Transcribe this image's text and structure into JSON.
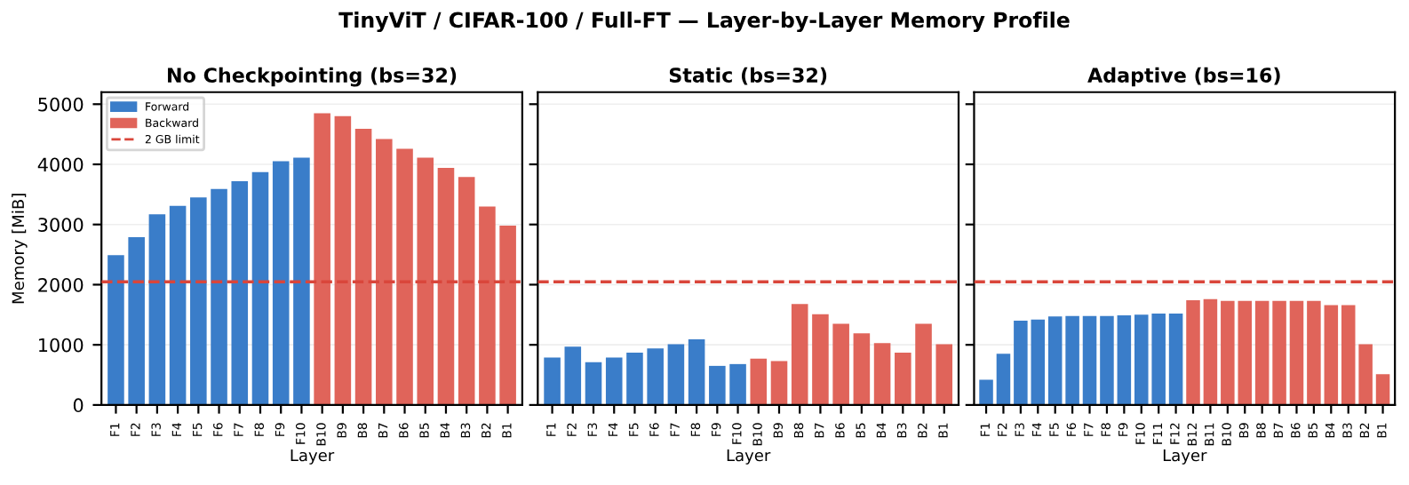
{
  "chart_data": [
    {
      "type": "bar",
      "title": "No Checkpointing (bs=32)",
      "xlabel": "Layer",
      "ylabel": "Memory [MiB]",
      "annotations": [
        "TinyViT / CIFAR-100 / Full-FT — Layer-by-Layer Memory Profile"
      ],
      "categories": [
        "F1",
        "F2",
        "F3",
        "F4",
        "F5",
        "F6",
        "F7",
        "F8",
        "F9",
        "F10",
        "B10",
        "B9",
        "B8",
        "B7",
        "B6",
        "B5",
        "B4",
        "B3",
        "B2",
        "B1"
      ],
      "series": [
        {
          "name": "Forward",
          "color": "#3a7dc9",
          "values": [
            2490,
            2790,
            3170,
            3310,
            3450,
            3590,
            3720,
            3870,
            4050,
            4110,
            null,
            null,
            null,
            null,
            null,
            null,
            null,
            null,
            null,
            null
          ]
        },
        {
          "name": "Backward",
          "color": "#e0645a",
          "values": [
            null,
            null,
            null,
            null,
            null,
            null,
            null,
            null,
            null,
            null,
            4850,
            4800,
            4590,
            4420,
            4260,
            4110,
            3940,
            3790,
            3300,
            2980
          ]
        }
      ],
      "ref_lines": [
        {
          "axis": "y",
          "value": 2048,
          "label": "2 GB limit",
          "color": "#d9463b",
          "line_style": "dashed"
        }
      ],
      "ylim": [
        0,
        5200
      ],
      "yticks": [
        0,
        1000,
        2000,
        3000,
        4000,
        5000
      ],
      "grid": "y",
      "legend": "top left"
    },
    {
      "type": "bar",
      "title": "Static (bs=32)",
      "xlabel": "Layer",
      "tick_labels": "x",
      "categories": [
        "F1",
        "F2",
        "F3",
        "F4",
        "F5",
        "F6",
        "F7",
        "F8",
        "F9",
        "F10",
        "B10",
        "B9",
        "B8",
        "B7",
        "B6",
        "B5",
        "B4",
        "B3",
        "B2",
        "B1"
      ],
      "series": [
        {
          "color": "#3a7dc9",
          "values": [
            790,
            970,
            710,
            790,
            870,
            940,
            1010,
            1090,
            650,
            680,
            null,
            null,
            null,
            null,
            null,
            null,
            null,
            null,
            null,
            null
          ]
        },
        {
          "color": "#e0645a",
          "values": [
            null,
            null,
            null,
            null,
            null,
            null,
            null,
            null,
            null,
            null,
            770,
            730,
            1680,
            1510,
            1350,
            1190,
            1030,
            870,
            1350,
            1010
          ]
        }
      ],
      "ref_lines": [
        {
          "axis": "y",
          "value": 2048,
          "color": "#d9463b",
          "line_style": "dashed"
        }
      ],
      "ylim": [
        0,
        5200
      ],
      "yticks": [
        0,
        1000,
        2000,
        3000,
        4000,
        5000
      ],
      "grid": "y"
    },
    {
      "type": "bar",
      "title": "Adaptive (bs=16)",
      "xlabel": "Layer",
      "tick_labels": "x",
      "categories": [
        "F1",
        "F2",
        "F3",
        "F4",
        "F5",
        "F6",
        "F7",
        "F8",
        "F9",
        "F10",
        "F11",
        "F12",
        "B12",
        "B11",
        "B10",
        "B9",
        "B8",
        "B7",
        "B6",
        "B5",
        "B4",
        "B3",
        "B2",
        "B1"
      ],
      "series": [
        {
          "color": "#3a7dc9",
          "values": [
            420,
            850,
            1400,
            1420,
            1470,
            1480,
            1480,
            1480,
            1490,
            1500,
            1520,
            1520,
            null,
            null,
            null,
            null,
            null,
            null,
            null,
            null,
            null,
            null,
            null,
            null
          ]
        },
        {
          "color": "#e0645a",
          "values": [
            null,
            null,
            null,
            null,
            null,
            null,
            null,
            null,
            null,
            null,
            null,
            null,
            1740,
            1760,
            1730,
            1730,
            1730,
            1730,
            1730,
            1730,
            1660,
            1660,
            1010,
            510
          ]
        }
      ],
      "ref_lines": [
        {
          "axis": "y",
          "value": 2048,
          "color": "#d9463b",
          "line_style": "dashed"
        }
      ],
      "ylim": [
        0,
        5200
      ],
      "yticks": [
        0,
        1000,
        2000,
        3000,
        4000,
        5000
      ],
      "grid": "y"
    }
  ]
}
